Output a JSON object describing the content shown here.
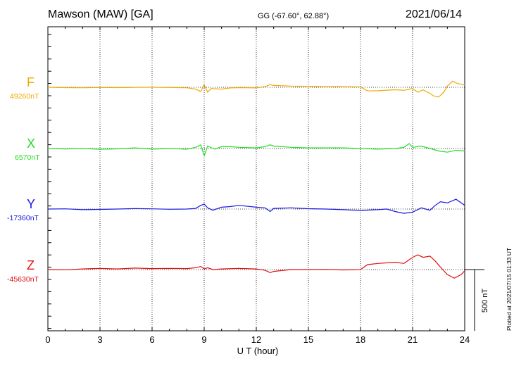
{
  "header": {
    "station": "Mawson (MAW)  [GA]",
    "coords": "GG (-67.60°,  62.88°)",
    "date": "2021/06/14"
  },
  "footer_note": "Plotted at 2021/07/15 01:33 UT",
  "colors": {
    "F": "#f0a800",
    "X": "#22dd22",
    "Y": "#1818e0",
    "Z": "#e01010"
  },
  "chart_data": {
    "type": "line",
    "xlabel": "U T (hour)",
    "xlim": [
      0,
      24
    ],
    "x_ticks": [
      "0",
      "3",
      "6",
      "9",
      "12",
      "15",
      "18",
      "21",
      "24"
    ],
    "scale_bar_label": "500 nT",
    "scale_bar_nT": 500,
    "series": [
      {
        "name": "F",
        "baseline_label": "49260nT",
        "baseline_nT": 49260,
        "points": [
          [
            0,
            0
          ],
          [
            1,
            -3
          ],
          [
            2,
            -4
          ],
          [
            3,
            -2
          ],
          [
            4,
            -3
          ],
          [
            5,
            -1
          ],
          [
            6,
            0
          ],
          [
            7,
            -2
          ],
          [
            8,
            -4
          ],
          [
            8.5,
            -15
          ],
          [
            8.8,
            -35
          ],
          [
            9,
            20
          ],
          [
            9.2,
            -40
          ],
          [
            9.4,
            -10
          ],
          [
            10,
            -15
          ],
          [
            10.5,
            -5
          ],
          [
            11,
            -3
          ],
          [
            12,
            -5
          ],
          [
            12.5,
            5
          ],
          [
            12.8,
            22
          ],
          [
            13,
            15
          ],
          [
            14,
            10
          ],
          [
            15,
            8
          ],
          [
            16,
            5
          ],
          [
            17,
            5
          ],
          [
            18,
            3
          ],
          [
            18.4,
            -30
          ],
          [
            19,
            -28
          ],
          [
            20,
            -20
          ],
          [
            20.5,
            -25
          ],
          [
            21,
            -10
          ],
          [
            21.3,
            -40
          ],
          [
            21.6,
            -20
          ],
          [
            22,
            -50
          ],
          [
            22.2,
            -70
          ],
          [
            22.5,
            -80
          ],
          [
            22.8,
            -40
          ],
          [
            23,
            10
          ],
          [
            23.3,
            50
          ],
          [
            23.6,
            30
          ],
          [
            24,
            20
          ]
        ]
      },
      {
        "name": "X",
        "baseline_label": "6570nT",
        "baseline_nT": 6570,
        "points": [
          [
            0,
            0
          ],
          [
            1,
            -4
          ],
          [
            2,
            0
          ],
          [
            3,
            -6
          ],
          [
            4,
            -3
          ],
          [
            5,
            5
          ],
          [
            6,
            -5
          ],
          [
            7,
            0
          ],
          [
            8,
            -6
          ],
          [
            8.5,
            10
          ],
          [
            8.8,
            30
          ],
          [
            9,
            -60
          ],
          [
            9.2,
            20
          ],
          [
            9.6,
            -5
          ],
          [
            10,
            15
          ],
          [
            10.5,
            15
          ],
          [
            11,
            10
          ],
          [
            12,
            5
          ],
          [
            12.5,
            15
          ],
          [
            12.8,
            30
          ],
          [
            13,
            20
          ],
          [
            14,
            10
          ],
          [
            15,
            5
          ],
          [
            16,
            5
          ],
          [
            17,
            5
          ],
          [
            18,
            0
          ],
          [
            19,
            -5
          ],
          [
            20,
            0
          ],
          [
            20.5,
            10
          ],
          [
            20.8,
            40
          ],
          [
            21,
            10
          ],
          [
            21.5,
            20
          ],
          [
            22,
            0
          ],
          [
            22.5,
            -20
          ],
          [
            23,
            -30
          ],
          [
            23.5,
            -15
          ],
          [
            24,
            -20
          ]
        ]
      },
      {
        "name": "Y",
        "baseline_label": "-17360nT",
        "baseline_nT": -17360,
        "points": [
          [
            0,
            0
          ],
          [
            1,
            2
          ],
          [
            2,
            -5
          ],
          [
            3,
            -3
          ],
          [
            4,
            0
          ],
          [
            5,
            4
          ],
          [
            6,
            2
          ],
          [
            7,
            -2
          ],
          [
            8,
            0
          ],
          [
            8.5,
            5
          ],
          [
            8.8,
            30
          ],
          [
            9,
            40
          ],
          [
            9.2,
            10
          ],
          [
            9.5,
            -10
          ],
          [
            10,
            15
          ],
          [
            10.5,
            20
          ],
          [
            11,
            30
          ],
          [
            12,
            15
          ],
          [
            12.5,
            10
          ],
          [
            12.8,
            -20
          ],
          [
            13,
            5
          ],
          [
            14,
            10
          ],
          [
            15,
            3
          ],
          [
            16,
            0
          ],
          [
            17,
            -5
          ],
          [
            18,
            -12
          ],
          [
            18.5,
            -8
          ],
          [
            19,
            -5
          ],
          [
            19.5,
            0
          ],
          [
            20,
            -20
          ],
          [
            20.5,
            -35
          ],
          [
            21,
            -25
          ],
          [
            21.5,
            10
          ],
          [
            22,
            -10
          ],
          [
            22.3,
            30
          ],
          [
            22.6,
            60
          ],
          [
            23,
            50
          ],
          [
            23.5,
            80
          ],
          [
            24,
            30
          ]
        ]
      },
      {
        "name": "Z",
        "baseline_label": "-45630nT",
        "baseline_nT": -45630,
        "points": [
          [
            0,
            0
          ],
          [
            1,
            -2
          ],
          [
            2,
            5
          ],
          [
            3,
            10
          ],
          [
            4,
            5
          ],
          [
            5,
            12
          ],
          [
            6,
            8
          ],
          [
            7,
            10
          ],
          [
            8,
            8
          ],
          [
            8.5,
            15
          ],
          [
            8.8,
            25
          ],
          [
            9,
            5
          ],
          [
            9.2,
            15
          ],
          [
            9.5,
            0
          ],
          [
            10,
            5
          ],
          [
            11,
            10
          ],
          [
            12,
            5
          ],
          [
            12.5,
            -5
          ],
          [
            12.8,
            -25
          ],
          [
            13,
            -15
          ],
          [
            14,
            0
          ],
          [
            15,
            0
          ],
          [
            16,
            2
          ],
          [
            17,
            -3
          ],
          [
            18,
            0
          ],
          [
            18.4,
            40
          ],
          [
            19,
            50
          ],
          [
            20,
            60
          ],
          [
            20.5,
            50
          ],
          [
            21,
            100
          ],
          [
            21.3,
            120
          ],
          [
            21.6,
            100
          ],
          [
            22,
            110
          ],
          [
            22.3,
            70
          ],
          [
            22.6,
            20
          ],
          [
            23,
            -40
          ],
          [
            23.4,
            -70
          ],
          [
            23.8,
            -40
          ],
          [
            24,
            -10
          ]
        ]
      }
    ]
  }
}
